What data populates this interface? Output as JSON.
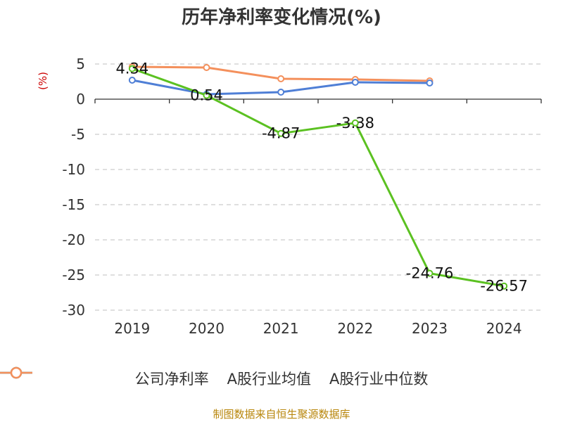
{
  "title": "历年净利率变化情况(%)",
  "source": "制图数据来自恒生聚源数据库",
  "chart_data": {
    "type": "line",
    "title": "历年净利率变化情况(%)",
    "ylabel": "(%)",
    "categories": [
      "2019",
      "2020",
      "2021",
      "2022",
      "2023",
      "2024"
    ],
    "ylim": [
      -30,
      5
    ],
    "yticks": [
      5,
      0,
      -5,
      -10,
      -15,
      -20,
      -25,
      -30
    ],
    "grid": true,
    "legend_position": "bottom",
    "series": [
      {
        "name": "公司净利率",
        "color": "#5bc121",
        "values": [
          4.34,
          0.54,
          -4.87,
          -3.38,
          -24.76,
          -26.57
        ],
        "labels": [
          "4.34",
          "0.54",
          "-4.87",
          "-3.38",
          "-24.76",
          "-26.57"
        ]
      },
      {
        "name": "A股行业均值",
        "color": "#4f7fd6",
        "values": [
          2.7,
          0.7,
          1.0,
          2.4,
          2.3,
          null
        ]
      },
      {
        "name": "A股行业中位数",
        "color": "#f4905c",
        "values": [
          4.6,
          4.5,
          2.9,
          2.8,
          2.6,
          null
        ]
      }
    ]
  }
}
